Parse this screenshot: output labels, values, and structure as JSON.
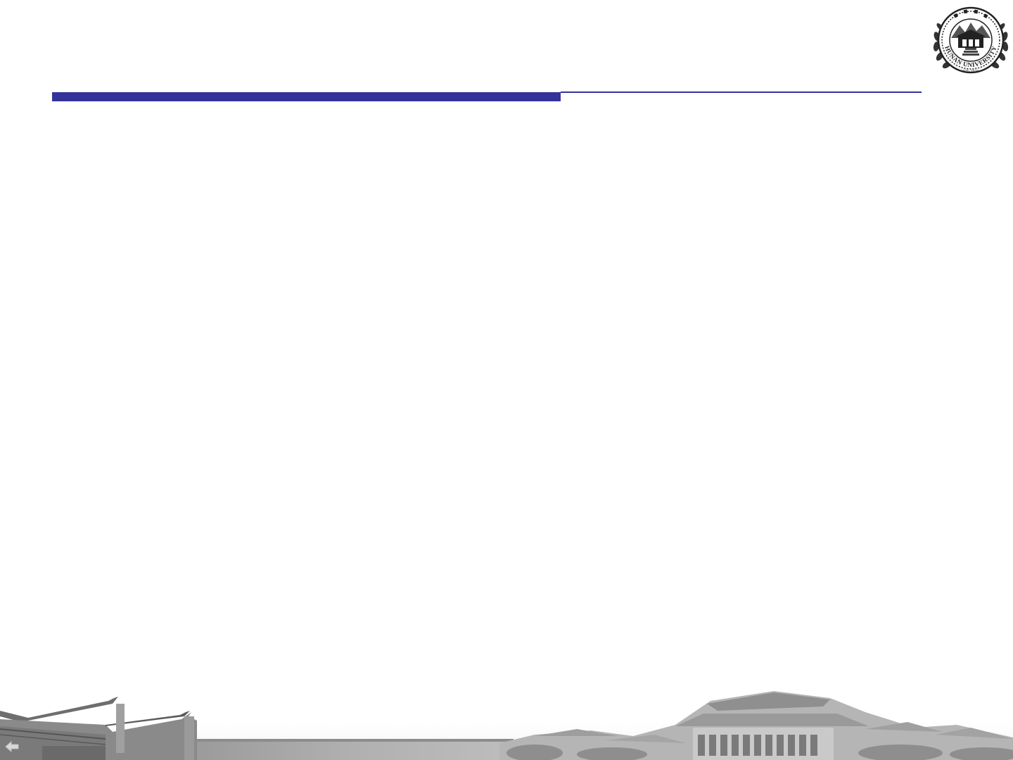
{
  "slide": {
    "title": "",
    "body": ""
  },
  "theme": {
    "accent": "#33339a",
    "background": "#ffffff"
  },
  "logo": {
    "name": "hunan-university-seal",
    "text": "HUNAN UNIVERSITY",
    "year": "976·1926"
  },
  "navigation": {
    "icon": "arrow-left-icon"
  }
}
